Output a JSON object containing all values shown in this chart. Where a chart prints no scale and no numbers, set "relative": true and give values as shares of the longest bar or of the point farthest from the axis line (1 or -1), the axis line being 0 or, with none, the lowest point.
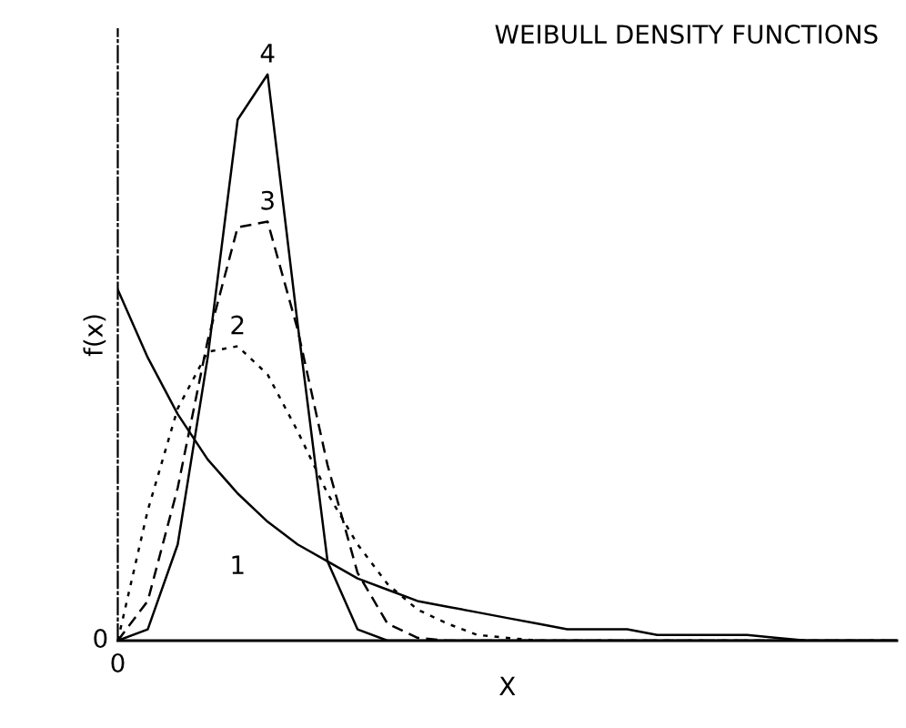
{
  "chart_data": {
    "type": "line",
    "title": "WEIBULL DENSITY FUNCTIONS",
    "xlabel": "X",
    "ylabel": "f(x)",
    "relative": true,
    "legend": false,
    "grid": false,
    "marker": "none",
    "categories": [
      null,
      null,
      null,
      null,
      null,
      null,
      null,
      null,
      null,
      null,
      null,
      null,
      null,
      null,
      null,
      null,
      null,
      null,
      null,
      null,
      null,
      null,
      null,
      null,
      null,
      null,
      null
    ],
    "annotations": [
      "0",
      "0"
    ],
    "series": [
      {
        "name": "1",
        "color": "#000000",
        "line_style": "solid",
        "values": [
          0.62,
          0.5,
          0.4,
          0.32,
          0.26,
          0.21,
          0.17,
          0.14,
          0.11,
          0.09,
          0.07,
          0.06,
          0.05,
          0.04,
          0.03,
          0.02,
          0.02,
          0.02,
          0.01,
          0.01,
          0.01,
          0.01,
          0.005,
          0,
          0,
          0,
          0
        ]
      },
      {
        "name": "2",
        "color": "#000000",
        "line_style": "dotted",
        "values": [
          0,
          0.23,
          0.41,
          0.51,
          0.52,
          0.47,
          0.37,
          0.26,
          0.17,
          0.1,
          0.055,
          0.03,
          0.01,
          0.005,
          0,
          0,
          0,
          0,
          0,
          0,
          0,
          0,
          0,
          0,
          0,
          0,
          0
        ]
      },
      {
        "name": "3",
        "color": "#000000",
        "line_style": "dashed",
        "values": [
          0,
          0.07,
          0.27,
          0.53,
          0.73,
          0.74,
          0.55,
          0.31,
          0.12,
          0.03,
          0.005,
          0,
          0,
          0,
          0,
          0,
          0,
          0,
          0,
          0,
          0,
          0,
          0,
          0,
          0,
          0,
          0
        ]
      },
      {
        "name": "4",
        "color": "#000000",
        "line_style": "solid",
        "values": [
          0,
          0.02,
          0.17,
          0.5,
          0.92,
          1,
          0.56,
          0.14,
          0.02,
          0,
          0,
          0,
          0,
          0,
          0,
          0,
          0,
          0,
          0,
          0,
          0,
          0,
          0,
          0,
          0,
          0,
          0
        ]
      }
    ]
  }
}
